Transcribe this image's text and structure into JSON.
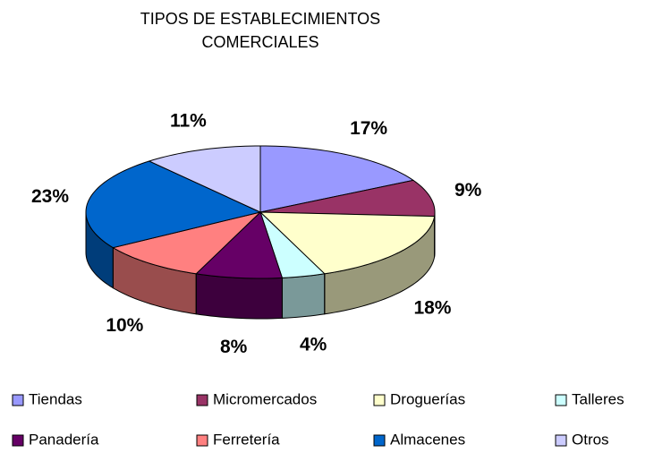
{
  "chart_data": {
    "type": "pie3d",
    "title": "TIPOS DE ESTABLECIMIENTOS COMERCIALES",
    "categories": [
      "Tiendas",
      "Micromercados",
      "Droguerías",
      "Talleres",
      "Panadería",
      "Ferretería",
      "Almacenes",
      "Otros"
    ],
    "values": [
      17,
      9,
      18,
      4,
      8,
      10,
      23,
      11
    ],
    "value_labels": [
      "17%",
      "9%",
      "18%",
      "4%",
      "8%",
      "10%",
      "23%",
      "11%"
    ],
    "colors": [
      "#9999ff",
      "#993366",
      "#ffffcc",
      "#ccffff",
      "#660066",
      "#ff8080",
      "#0066cc",
      "#ccccff"
    ],
    "legend": "bottom"
  }
}
